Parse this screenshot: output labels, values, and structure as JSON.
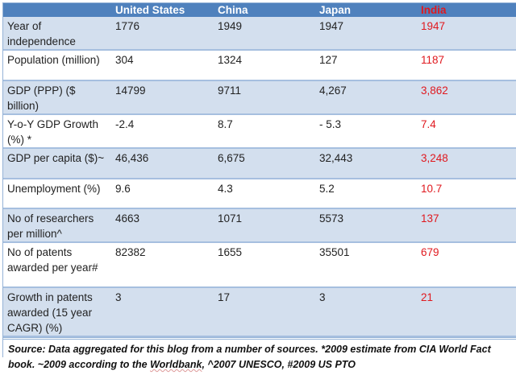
{
  "columns": [
    "",
    "United States",
    "China",
    "Japan",
    "India"
  ],
  "rows": [
    {
      "label": "Year of independence",
      "values": [
        "1776",
        "1949",
        "1947",
        "1947"
      ]
    },
    {
      "label": "Population (million)",
      "values": [
        "304",
        "1324",
        "127",
        "1187"
      ]
    },
    {
      "label": "GDP (PPP) ($ billion)",
      "values": [
        "14799",
        "9711",
        "4,267",
        "3,862"
      ]
    },
    {
      "label": "Y-o-Y GDP Growth (%) *",
      "values": [
        "-2.4",
        "8.7",
        "- 5.3",
        "7.4"
      ]
    },
    {
      "label": "GDP per capita ($)~",
      "values": [
        "46,436",
        "6,675",
        "32,443",
        "3,248"
      ]
    },
    {
      "label": "Unemployment (%)",
      "values": [
        "9.6",
        "4.3",
        "5.2",
        "10.7"
      ]
    },
    {
      "label": "No of researchers per million^",
      "values": [
        "4663",
        "1071",
        "5573",
        "137"
      ]
    },
    {
      "label": "No of patents awarded per year#",
      "values": [
        "82382",
        "1655",
        "35501",
        "679"
      ]
    },
    {
      "label": "Growth in patents awarded (15 year CAGR) (%)",
      "values": [
        "3",
        "17",
        "3",
        "21"
      ]
    }
  ],
  "footnote": {
    "part1": "Source:  Data aggregated for this blog from a number of sources. *2009 estimate from CIA World Fact book. ~2009 according to the ",
    "link": "Worldbank",
    "part2": ", ^2007 UNESCO, #2009 US PTO"
  },
  "colors": {
    "header": "#4f81bd",
    "band": "#d3dfee",
    "highlight": "#e0191f"
  }
}
